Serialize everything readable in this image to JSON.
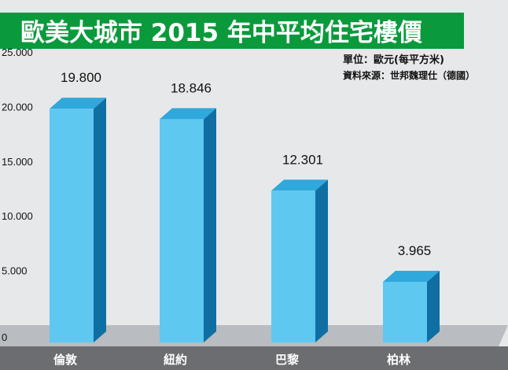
{
  "header": {
    "title": "歐美大城市 2015 年中平均住宅樓價",
    "unit_note": "單位：歐元(每平方米)",
    "source_note": "資料來源：世邦魏理仕（德國）"
  },
  "colors": {
    "title_bg": "#0a9a3c",
    "plot_bg": "#e7e8ea",
    "bar_front": "#5ec8f0",
    "bar_top": "#2fa8dc",
    "bar_side": "#0f6fa3",
    "axis_band": "#6b6d70"
  },
  "chart_data": {
    "type": "bar",
    "title": "歐美大城市 2015 年中平均住宅樓價",
    "ylabel": "單位：歐元(每平方米)",
    "xlabel": "",
    "categories": [
      "倫敦",
      "紐約",
      "巴黎",
      "柏林"
    ],
    "values": [
      19800,
      18846,
      12301,
      3965
    ],
    "value_labels": [
      "19.800",
      "18.846",
      "12.301",
      "3.965"
    ],
    "ylim": [
      0,
      25000
    ],
    "yticks": [
      0,
      5000,
      10000,
      15000,
      20000,
      25000
    ],
    "ytick_labels": [
      "0",
      "5.000",
      "10.000",
      "15.000",
      "20.000",
      "25.000"
    ],
    "grid": false,
    "style": "3d"
  }
}
